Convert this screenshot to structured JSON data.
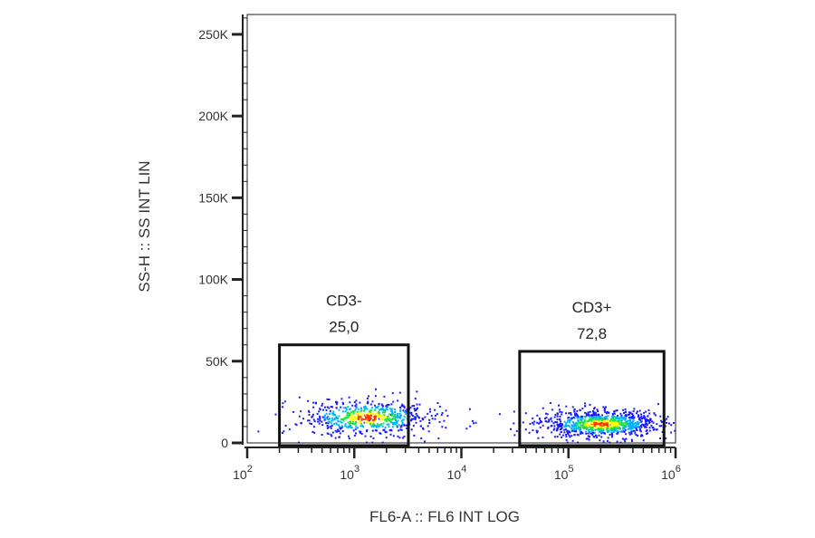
{
  "chart_data": {
    "type": "scatter",
    "xlabel": "FL6-A :: FL6 INT LOG",
    "ylabel": "SS-H :: SS INT LIN",
    "x_scale": "log",
    "xlim": [
      100,
      1000000
    ],
    "ylim": [
      0,
      262144
    ],
    "x_ticks": [
      {
        "value": 100,
        "base": "10",
        "exp": "2"
      },
      {
        "value": 1000,
        "base": "10",
        "exp": "3"
      },
      {
        "value": 10000,
        "base": "10",
        "exp": "4"
      },
      {
        "value": 100000,
        "base": "10",
        "exp": "5"
      },
      {
        "value": 1000000,
        "base": "10",
        "exp": "6"
      }
    ],
    "y_ticks": [
      {
        "value": 0,
        "label": "0"
      },
      {
        "value": 50000,
        "label": "50K"
      },
      {
        "value": 100000,
        "label": "100K"
      },
      {
        "value": 150000,
        "label": "150K"
      },
      {
        "value": 200000,
        "label": "200K"
      },
      {
        "value": 250000,
        "label": "250K"
      }
    ],
    "gates": [
      {
        "name": "CD3-",
        "value": "25,0",
        "x_range": [
          200,
          3200
        ],
        "y_range": [
          0,
          60000
        ]
      },
      {
        "name": "CD3+",
        "value": "72,8",
        "x_range": [
          35000,
          780000
        ],
        "y_range": [
          0,
          56000
        ]
      }
    ],
    "populations": [
      {
        "name": "CD3-",
        "center_x": 1300,
        "center_y": 16000,
        "spread_log_x": 0.3,
        "spread_y": 5500
      },
      {
        "name": "CD3+",
        "center_x": 200000,
        "center_y": 12000,
        "spread_log_x": 0.27,
        "spread_y": 4000
      }
    ],
    "density_colors": [
      "#1a1aff",
      "#00b3ff",
      "#21e043",
      "#ffff00",
      "#ff3300"
    ]
  }
}
